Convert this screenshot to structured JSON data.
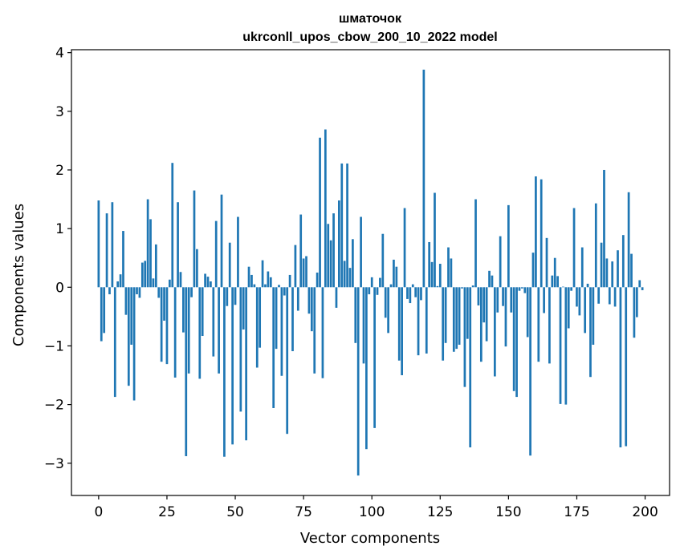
{
  "chart_data": {
    "type": "bar",
    "title_line1": "шматочок",
    "title_line2": "ukrconll_upos_cbow_200_10_2022 model",
    "xlabel": "Vector components",
    "ylabel": "Components values",
    "xlim": [
      -9.95,
      208.95
    ],
    "ylim": [
      -3.55,
      4.05
    ],
    "xticks": [
      0,
      25,
      50,
      75,
      100,
      125,
      150,
      175,
      200
    ],
    "yticks": [
      -3,
      -2,
      -1,
      0,
      1,
      2,
      3,
      4
    ],
    "bar_color": "#1f77b4",
    "grid": false,
    "legend": "none",
    "values": [
      1.48,
      -0.92,
      -0.78,
      1.26,
      -0.12,
      1.45,
      -1.87,
      0.1,
      0.22,
      0.96,
      -0.47,
      -1.68,
      -0.98,
      -1.93,
      -0.12,
      -0.18,
      0.42,
      0.45,
      1.5,
      1.16,
      0.15,
      0.73,
      -0.18,
      -1.27,
      -0.57,
      -1.31,
      0.13,
      2.12,
      -1.54,
      1.45,
      0.26,
      -0.77,
      -2.88,
      -1.47,
      -0.17,
      1.65,
      0.65,
      -1.56,
      -0.83,
      0.23,
      0.18,
      0.1,
      -1.18,
      1.13,
      -1.47,
      1.58,
      -2.89,
      -0.32,
      0.76,
      -2.68,
      -0.3,
      1.2,
      -2.12,
      -0.72,
      -2.61,
      0.35,
      0.21,
      0.05,
      -1.37,
      -1.03,
      0.46,
      0.05,
      0.27,
      0.17,
      -2.06,
      -1.05,
      0.04,
      -1.51,
      -0.14,
      -2.5,
      0.21,
      -1.09,
      0.72,
      -0.4,
      1.24,
      0.49,
      0.53,
      -0.45,
      -0.75,
      -1.47,
      0.25,
      2.55,
      -1.55,
      2.69,
      1.08,
      0.8,
      1.26,
      -0.35,
      1.48,
      2.11,
      0.45,
      2.11,
      0.33,
      0.82,
      -0.95,
      -3.21,
      1.2,
      -1.3,
      -2.76,
      -0.12,
      0.17,
      -2.4,
      -0.13,
      0.16,
      0.91,
      -0.52,
      -0.78,
      0.05,
      0.47,
      0.35,
      -1.25,
      -1.5,
      1.35,
      -0.2,
      -0.27,
      0.05,
      -0.17,
      -1.16,
      -0.22,
      3.71,
      -1.13,
      0.77,
      0.43,
      1.61,
      0.02,
      0.4,
      -1.25,
      -0.95,
      0.68,
      0.49,
      -1.1,
      -1.05,
      -0.98,
      -0.02,
      -1.7,
      -0.88,
      -2.73,
      0.03,
      1.5,
      -0.31,
      -1.27,
      -0.6,
      -0.92,
      0.28,
      0.2,
      -1.52,
      -0.43,
      0.87,
      -0.32,
      -1.01,
      1.4,
      -0.43,
      -1.77,
      -1.87,
      -0.06,
      -0.02,
      -0.1,
      -0.85,
      -2.87,
      0.59,
      1.89,
      -1.27,
      1.84,
      -0.44,
      0.84,
      -1.3,
      0.2,
      0.5,
      0.19,
      -1.99,
      0.01,
      -2.0,
      -0.7,
      -0.06,
      1.35,
      -0.33,
      -0.48,
      0.68,
      -0.78,
      0.06,
      -1.53,
      -0.98,
      1.43,
      -0.28,
      0.76,
      2.0,
      0.49,
      -0.29,
      0.44,
      -0.33,
      0.63,
      -2.73,
      0.89,
      -2.71,
      1.62,
      0.57,
      -0.86,
      -0.51,
      0.12,
      -0.05
    ]
  }
}
